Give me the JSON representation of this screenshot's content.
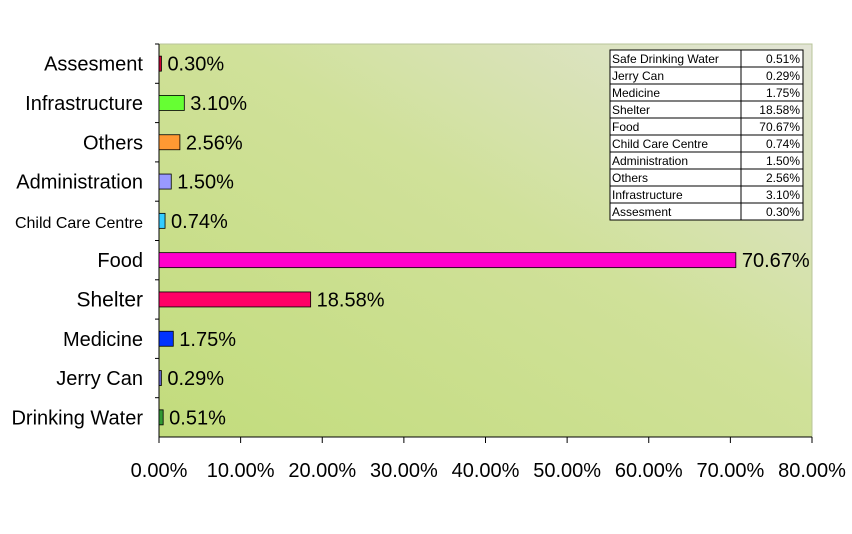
{
  "chart_data": {
    "type": "bar",
    "orientation": "horizontal",
    "categories": [
      "Assesment",
      "Infrastructure",
      "Others",
      "Administration",
      "Child Care Centre",
      "Food",
      "Shelter",
      "Medicine",
      "Jerry Can",
      "Drinking Water"
    ],
    "values": [
      0.3,
      3.1,
      2.56,
      1.5,
      0.74,
      70.67,
      18.58,
      1.75,
      0.29,
      0.51
    ],
    "value_labels": [
      "0.30%",
      "3.10%",
      "2.56%",
      "1.50%",
      "0.74%",
      "70.67%",
      "18.58%",
      "1.75%",
      "0.29%",
      "0.51%"
    ],
    "colors": [
      "#cc0033",
      "#66ff33",
      "#ff9933",
      "#9999ff",
      "#33ccff",
      "#ff00cc",
      "#ff0066",
      "#0033ff",
      "#6666cc",
      "#339933"
    ],
    "xlim": [
      0,
      80
    ],
    "x_ticks": [
      "0.00%",
      "10.00%",
      "20.00%",
      "30.00%",
      "40.00%",
      "50.00%",
      "60.00%",
      "70.00%",
      "80.00%"
    ],
    "title": "",
    "xlabel": "",
    "ylabel": "",
    "grid": false,
    "plot_background": "gradient green",
    "data_table": [
      {
        "label": "Safe Drinking Water",
        "value": "0.51%"
      },
      {
        "label": "Jerry Can",
        "value": "0.29%"
      },
      {
        "label": "Medicine",
        "value": "1.75%"
      },
      {
        "label": "Shelter",
        "value": "18.58%"
      },
      {
        "label": "Food",
        "value": "70.67%"
      },
      {
        "label": "Child Care Centre",
        "value": "0.74%"
      },
      {
        "label": "Administration",
        "value": "1.50%"
      },
      {
        "label": "Others",
        "value": "2.56%"
      },
      {
        "label": "Infrastructure",
        "value": "3.10%"
      },
      {
        "label": "Assesment",
        "value": "0.30%"
      }
    ]
  }
}
